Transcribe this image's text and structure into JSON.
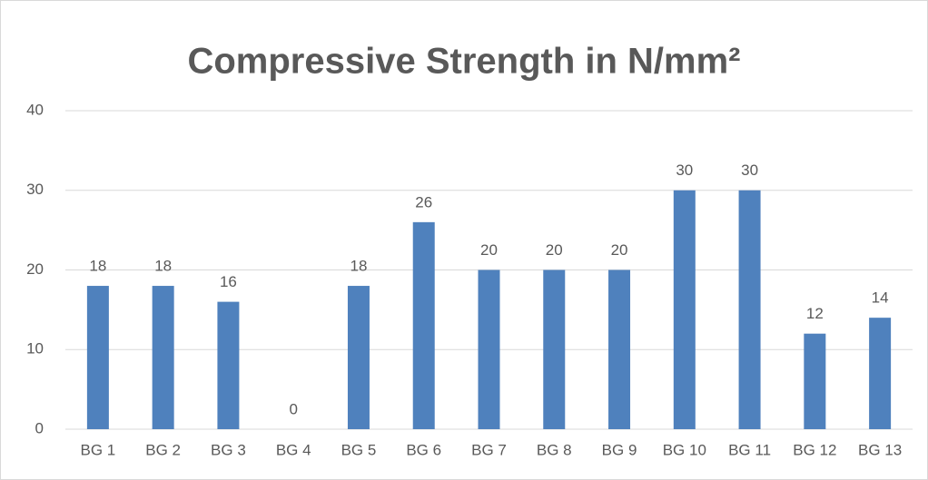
{
  "chart_data": {
    "type": "bar",
    "title": "Compressive Strength in N/mm²",
    "categories": [
      "BG 1",
      "BG 2",
      "BG 3",
      "BG 4",
      "BG 5",
      "BG 6",
      "BG 7",
      "BG 8",
      "BG 9",
      "BG 10",
      "BG 11",
      "BG 12",
      "BG 13"
    ],
    "values": [
      18,
      18,
      16,
      0,
      18,
      26,
      20,
      20,
      20,
      30,
      30,
      12,
      14
    ],
    "color": "#4f81bd",
    "ylim": [
      0,
      40
    ],
    "yticks": [
      0,
      10,
      20,
      30,
      40
    ],
    "grid": true
  }
}
